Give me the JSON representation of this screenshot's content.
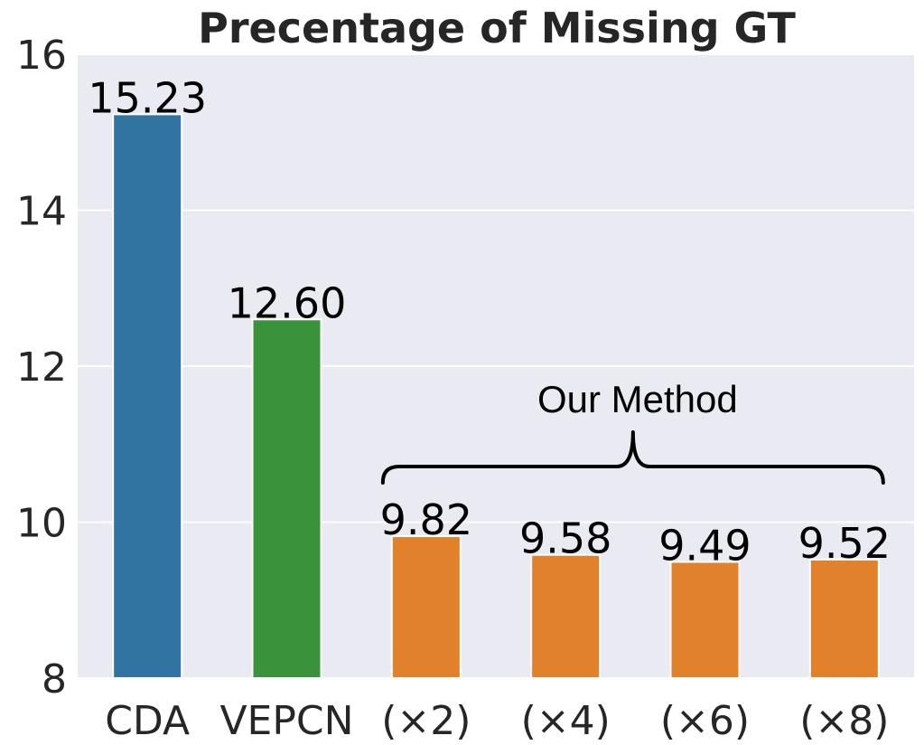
{
  "chart_data": {
    "type": "bar",
    "title": "Precentage of Missing GT",
    "xlabel": "",
    "ylabel": "",
    "ylim": [
      8,
      16
    ],
    "yticks": [
      8,
      10,
      12,
      14,
      16
    ],
    "grid": true,
    "categories": [
      "CDA",
      "VEPCN",
      "(×2)",
      "(×4)",
      "(×6)",
      "(×8)"
    ],
    "values": [
      15.23,
      12.6,
      9.82,
      9.58,
      9.49,
      9.52
    ],
    "value_labels": [
      "15.23",
      "12.60",
      "9.82",
      "9.58",
      "9.49",
      "9.52"
    ],
    "colors": [
      "#3274a1",
      "#3a923a",
      "#e1812c",
      "#e1812c",
      "#e1812c",
      "#e1812c"
    ],
    "background": "#eaeaf2",
    "annotation": {
      "text": "Our Method",
      "spans_categories": [
        "(×2)",
        "(×4)",
        "(×6)",
        "(×8)"
      ]
    }
  }
}
